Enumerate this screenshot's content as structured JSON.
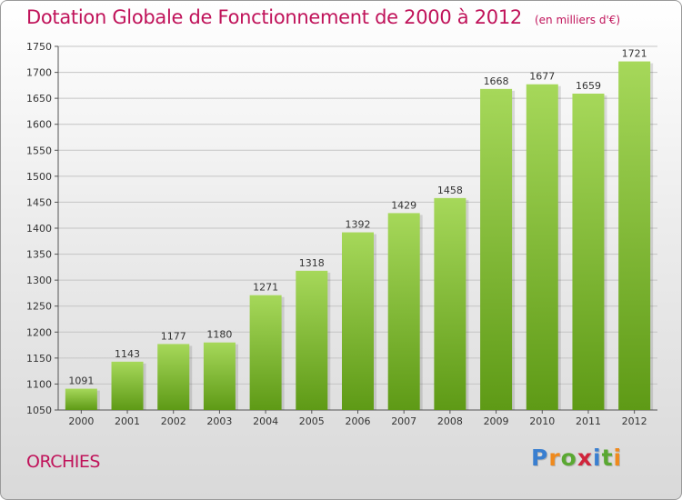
{
  "title": "Dotation Globale de Fonctionnement de 2000 à 2012",
  "units": "(en milliers d'€)",
  "commune": "ORCHIES",
  "logo": {
    "text": "Proxiti",
    "letters": [
      "P",
      "r",
      "o",
      "x",
      "i",
      "t",
      "i"
    ],
    "colors": [
      "#3a7fd0",
      "#ef8a1d",
      "#5aa832",
      "#d0253c",
      "#3a7fd0",
      "#5aa832",
      "#ef8a1d"
    ]
  },
  "colors": {
    "bar_light": "#a6d85a",
    "bar_dark": "#5e9a16",
    "title": "#c0135a"
  },
  "chart_data": {
    "type": "bar",
    "title": "Dotation Globale de Fonctionnement de 2000 à 2012",
    "subtitle": "(en milliers d'€)",
    "categories": [
      "2000",
      "2001",
      "2002",
      "2003",
      "2004",
      "2005",
      "2006",
      "2007",
      "2008",
      "2009",
      "2010",
      "2011",
      "2012"
    ],
    "values": [
      1091,
      1143,
      1177,
      1180,
      1271,
      1318,
      1392,
      1429,
      1458,
      1668,
      1677,
      1659,
      1721
    ],
    "ylim": [
      1050,
      1750
    ],
    "yticks": [
      1050,
      1100,
      1150,
      1200,
      1250,
      1300,
      1350,
      1400,
      1450,
      1500,
      1550,
      1600,
      1650,
      1700,
      1750
    ],
    "grid": true,
    "legend": "none"
  }
}
